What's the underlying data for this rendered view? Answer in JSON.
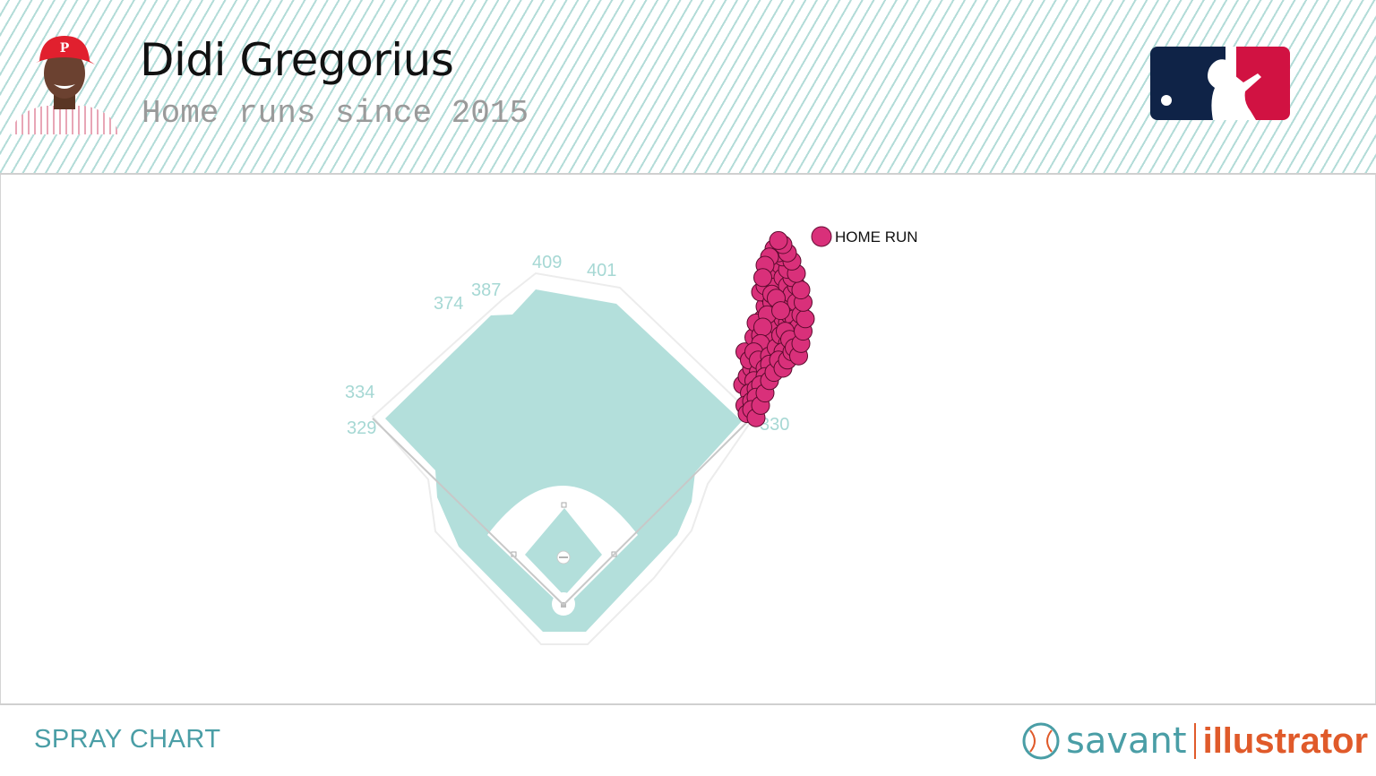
{
  "header": {
    "player_name": "Didi Gregorius",
    "subtitle": "Home runs since 2015",
    "avatar_icon": "player-headshot-icon",
    "logo_icon": "mlb-logo-icon"
  },
  "footer": {
    "title": "SPRAY CHART",
    "brand_savant": "savant",
    "brand_illustrator": "illustrator",
    "brand_icon": "baseball-icon"
  },
  "colors": {
    "field": "#b3dfdb",
    "home_run": "#d9307a",
    "accent_teal": "#4a9ea6",
    "accent_orange": "#e05a2a"
  },
  "chart_data": {
    "type": "scatter",
    "legend": [
      {
        "label": "HOME RUN",
        "color": "#d9307a"
      }
    ],
    "legend_position": "top-right",
    "fence_distances": [
      {
        "label": "329"
      },
      {
        "label": "334"
      },
      {
        "label": "374"
      },
      {
        "label": "387"
      },
      {
        "label": "409"
      },
      {
        "label": "401"
      },
      {
        "label": "330"
      }
    ],
    "series": [
      {
        "name": "HOME RUN",
        "points": [
          [
            50,
            68
          ],
          [
            57,
            57
          ],
          [
            51,
            52
          ],
          [
            55,
            45
          ],
          [
            63,
            40
          ],
          [
            59,
            36
          ],
          [
            60,
            30
          ],
          [
            61,
            24
          ],
          [
            58,
            23
          ],
          [
            62,
            18
          ],
          [
            52,
            64
          ],
          [
            54,
            60
          ],
          [
            59,
            52
          ],
          [
            61,
            48
          ],
          [
            65,
            34
          ],
          [
            66,
            28
          ],
          [
            60,
            20
          ],
          [
            62,
            14
          ],
          [
            56,
            38
          ],
          [
            58,
            44
          ],
          [
            53,
            56
          ],
          [
            57,
            62
          ],
          [
            64,
            46
          ],
          [
            66,
            40
          ],
          [
            68,
            36
          ],
          [
            67,
            30
          ],
          [
            63,
            28
          ],
          [
            61,
            34
          ],
          [
            59,
            40
          ],
          [
            58,
            48
          ],
          [
            55,
            52
          ],
          [
            57,
            56
          ],
          [
            55,
            66
          ],
          [
            53,
            72
          ],
          [
            51,
            78
          ],
          [
            52,
            82
          ],
          [
            54,
            76
          ],
          [
            56,
            70
          ],
          [
            60,
            60
          ],
          [
            62,
            54
          ],
          [
            65,
            50
          ],
          [
            67,
            44
          ],
          [
            70,
            38
          ],
          [
            71,
            34
          ],
          [
            72,
            30
          ],
          [
            69,
            26
          ],
          [
            66,
            22
          ],
          [
            64,
            18
          ],
          [
            63,
            12
          ],
          [
            65,
            8
          ],
          [
            67,
            10
          ],
          [
            68,
            16
          ],
          [
            70,
            20
          ],
          [
            72,
            24
          ],
          [
            74,
            28
          ],
          [
            73,
            36
          ],
          [
            72,
            42
          ],
          [
            70,
            48
          ],
          [
            68,
            52
          ],
          [
            62,
            58
          ],
          [
            60,
            64
          ],
          [
            58,
            68
          ],
          [
            56,
            74
          ],
          [
            54,
            80
          ],
          [
            56,
            84
          ],
          [
            58,
            78
          ],
          [
            60,
            72
          ],
          [
            62,
            66
          ],
          [
            64,
            62
          ],
          [
            66,
            56
          ],
          [
            68,
            60
          ],
          [
            70,
            56
          ],
          [
            72,
            52
          ],
          [
            74,
            46
          ],
          [
            75,
            40
          ],
          [
            76,
            34
          ],
          [
            74,
            20
          ],
          [
            72,
            16
          ],
          [
            70,
            12
          ],
          [
            68,
            6
          ],
          [
            66,
            4
          ],
          [
            64,
            2
          ],
          [
            62,
            6
          ],
          [
            60,
            10
          ],
          [
            59,
            16
          ],
          [
            63,
            24
          ],
          [
            65,
            26
          ],
          [
            67,
            32
          ],
          [
            69,
            42
          ],
          [
            71,
            46
          ],
          [
            73,
            50
          ],
          [
            75,
            54
          ],
          [
            76,
            48
          ],
          [
            77,
            42
          ],
          [
            78,
            36
          ],
          [
            77,
            28
          ],
          [
            76,
            22
          ],
          [
            74,
            14
          ],
          [
            72,
            8
          ],
          [
            70,
            4
          ],
          [
            68,
            0
          ],
          [
            66,
            -2
          ]
        ]
      }
    ]
  }
}
